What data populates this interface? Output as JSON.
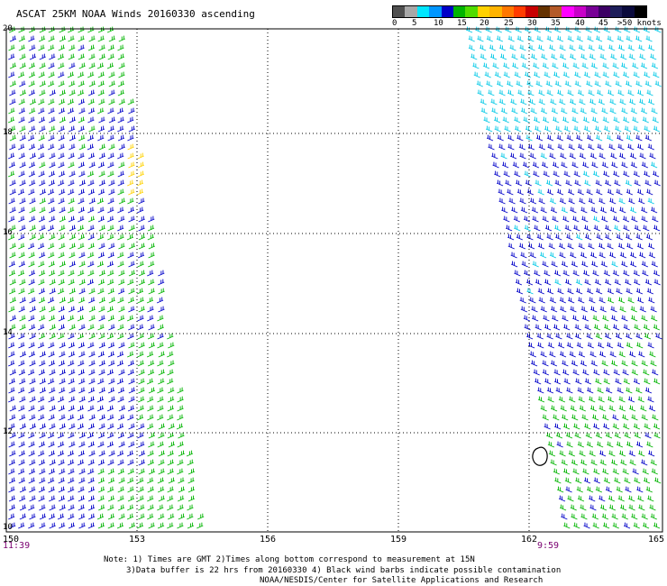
{
  "title": "ASCAT 25KM NOAA Winds 20160330 ascending",
  "legend": {
    "labels": [
      "0",
      "5",
      "10",
      "15",
      "20",
      "25",
      "30",
      "35",
      "40",
      "45",
      ">50 knots"
    ],
    "colors": [
      "#505050",
      "#a8a8a8",
      "#00e6ff",
      "#0096ff",
      "#0000c8",
      "#00b400",
      "#50dc00",
      "#ffd200",
      "#ffb400",
      "#ff7800",
      "#ff3c00",
      "#c80000",
      "#643200",
      "#b45a28",
      "#ff00ff",
      "#c800c8",
      "#780096",
      "#3c0064",
      "#1e1e5a",
      "#0a0a3c",
      "#000000"
    ]
  },
  "axes": {
    "x_ticks": [
      "150",
      "153",
      "156",
      "159",
      "162",
      "165"
    ],
    "y_ticks": [
      "20",
      "18",
      "16",
      "14",
      "12",
      "10"
    ]
  },
  "times": {
    "left": "11:39",
    "right": "9:59"
  },
  "notes": [
    "Note: 1) Times are GMT 2)Times along bottom correspond to measurement at 15N",
    "3)Data buffer is 22 hrs from 20160330 4) Black wind barbs indicate possible contamination",
    "NOAA/NESDIS/Center for Satellite Applications and Research"
  ],
  "swaths": [
    {
      "name": "west-swath",
      "lon_range": [
        150,
        154.5
      ],
      "colors": [
        "#0000c8",
        "#00b400"
      ]
    },
    {
      "name": "east-swath",
      "lon_range": [
        160.5,
        165
      ],
      "colors": [
        "#00c8e6",
        "#0000c8",
        "#00b400"
      ]
    }
  ]
}
